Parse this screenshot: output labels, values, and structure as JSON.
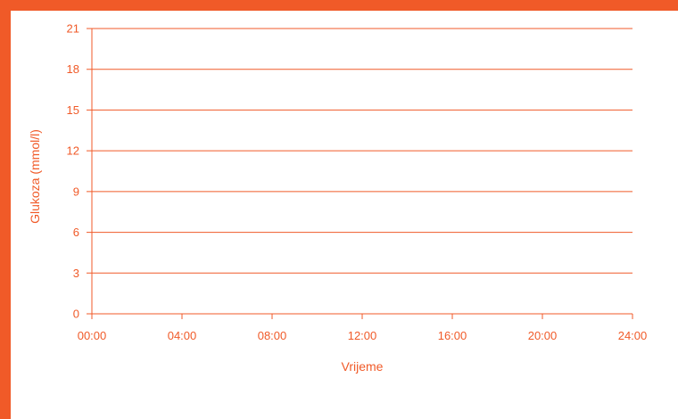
{
  "colors": {
    "accent": "#f05a28",
    "text": "#f05a28"
  },
  "chart_data": {
    "type": "line",
    "title": "",
    "xlabel": "Vrijeme",
    "ylabel": "Glukoza (mmol/l)",
    "x_ticks": [
      "00:00",
      "04:00",
      "08:00",
      "12:00",
      "16:00",
      "20:00",
      "24:00"
    ],
    "y_ticks": [
      0,
      3,
      6,
      9,
      12,
      15,
      18,
      21
    ],
    "xlim": [
      "00:00",
      "24:00"
    ],
    "ylim": [
      0,
      21
    ],
    "grid": "horizontal",
    "series": []
  }
}
